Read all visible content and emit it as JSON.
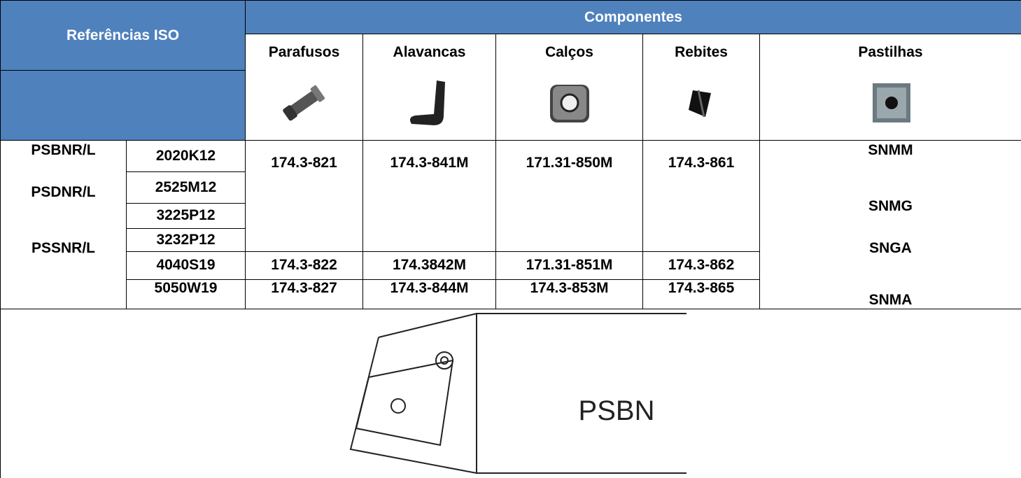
{
  "header": {
    "title": "Referências ISO",
    "group": "Componentes",
    "columns": [
      "Parafusos",
      "Alavancas",
      "Calços",
      "Rebites",
      "Pastilhas"
    ]
  },
  "table": {
    "families": [
      "PSBNR/L",
      "PSDNR/L",
      "PSSNR/L"
    ],
    "sizes": [
      "2020K12",
      "2525M12",
      "3225P12",
      "3232P12",
      "4040S19",
      "5050W19"
    ],
    "components": [
      [
        "174.3-821",
        "174.3-841M",
        "171.31-850M",
        "174.3-861"
      ],
      [
        "174.3-822",
        "174.3842M",
        "171.31-851M",
        "174.3-862"
      ],
      [
        "174.3-827",
        "174.3-844M",
        "174.3-853M",
        "174.3-865"
      ]
    ],
    "inserts": [
      "SNMM",
      "SNMG",
      "SNGA",
      "SNMA"
    ]
  },
  "diagram": {
    "label": "PSBN"
  }
}
